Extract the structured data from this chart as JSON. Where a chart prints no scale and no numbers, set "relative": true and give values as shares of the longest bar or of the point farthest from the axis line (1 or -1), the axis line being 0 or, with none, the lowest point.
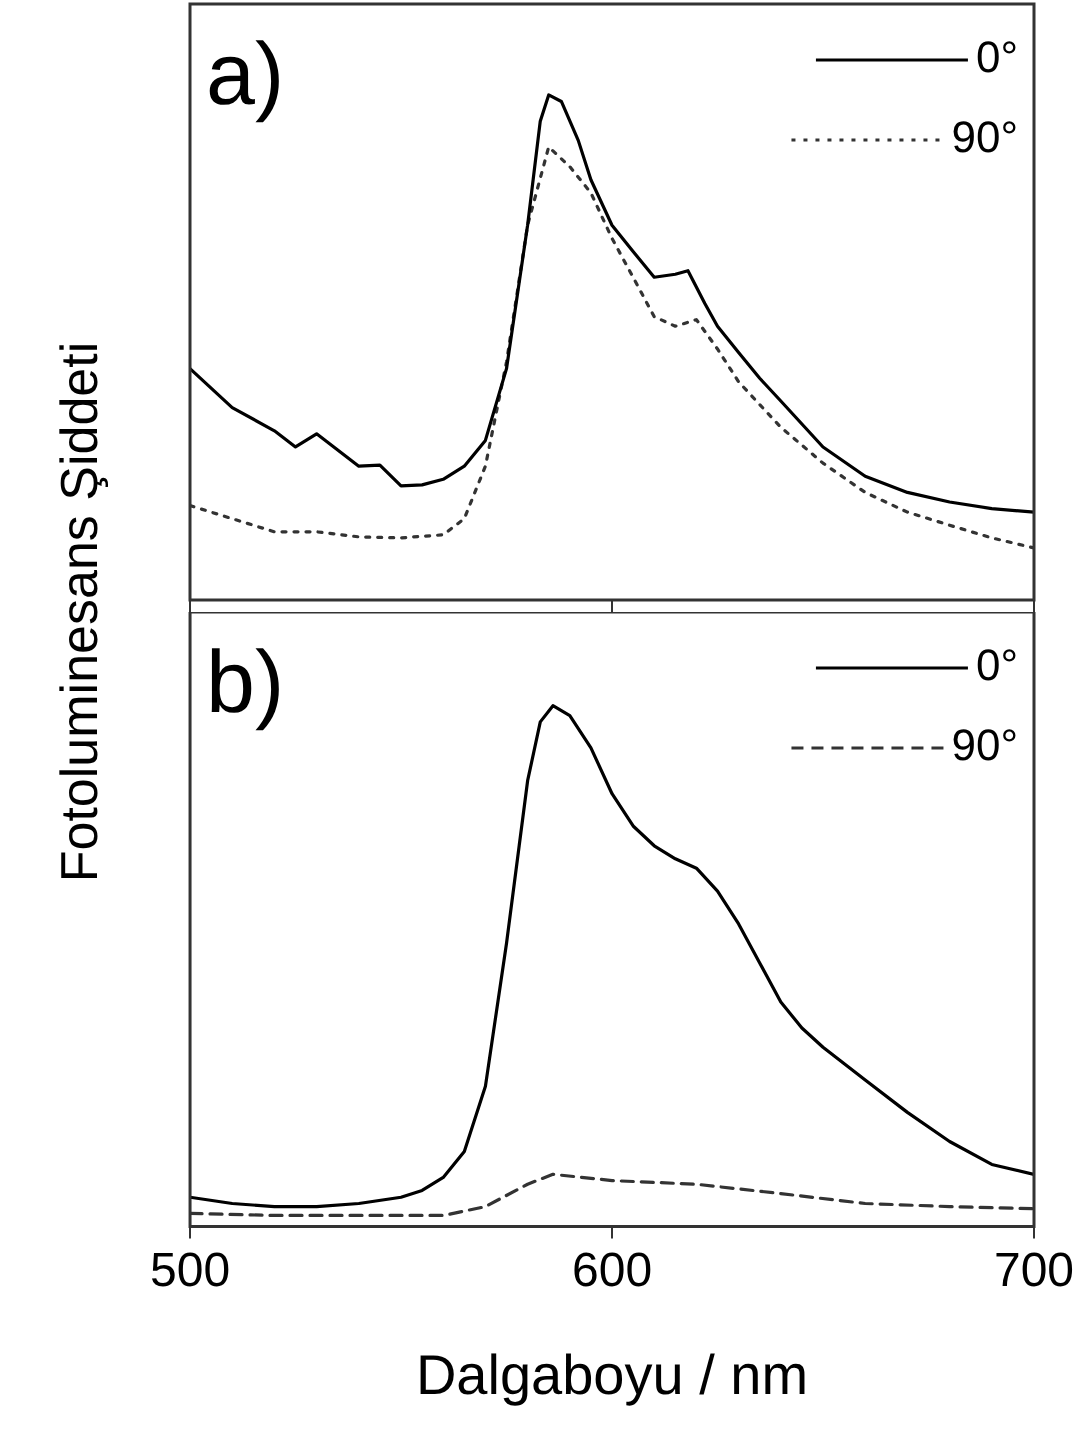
{
  "chart_data": [
    {
      "type": "line",
      "title": "a)",
      "ylabel": "Fotoluminesans Şiddeti",
      "relative": true,
      "xlim": [
        500,
        700
      ],
      "xticks": [
        500,
        600,
        700
      ],
      "tick_labels": false,
      "legend": "top right",
      "marker": "none",
      "grid": false,
      "series": [
        {
          "name": "0°",
          "color": "#000000",
          "line_style": "solid",
          "x": [
            500,
            510,
            520,
            525,
            530,
            540,
            545,
            550,
            555,
            560,
            565,
            570,
            575,
            580,
            583,
            585,
            588,
            592,
            595,
            600,
            605,
            610,
            615,
            618,
            622,
            625,
            630,
            635,
            640,
            650,
            660,
            670,
            680,
            690,
            700
          ],
          "values": [
            0.458,
            0.381,
            0.335,
            0.303,
            0.329,
            0.265,
            0.267,
            0.226,
            0.228,
            0.239,
            0.265,
            0.316,
            0.458,
            0.742,
            0.948,
            1.0,
            0.987,
            0.91,
            0.832,
            0.742,
            0.69,
            0.639,
            0.645,
            0.652,
            0.587,
            0.542,
            0.49,
            0.439,
            0.394,
            0.303,
            0.245,
            0.213,
            0.194,
            0.181,
            0.174
          ]
        },
        {
          "name": "90°",
          "color": "#333333",
          "line_style": "dotted",
          "x": [
            500,
            510,
            520,
            530,
            540,
            550,
            560,
            565,
            570,
            575,
            580,
            585,
            590,
            595,
            600,
            605,
            610,
            615,
            620,
            625,
            630,
            640,
            650,
            660,
            670,
            680,
            690,
            700
          ],
          "values": [
            0.187,
            0.161,
            0.135,
            0.135,
            0.125,
            0.123,
            0.129,
            0.161,
            0.265,
            0.471,
            0.742,
            0.897,
            0.858,
            0.806,
            0.716,
            0.639,
            0.561,
            0.542,
            0.555,
            0.497,
            0.432,
            0.342,
            0.271,
            0.213,
            0.174,
            0.148,
            0.123,
            0.103
          ]
        }
      ]
    },
    {
      "type": "line",
      "title": "b)",
      "xlabel": "Dalgaboyu / nm",
      "relative": true,
      "xlim": [
        500,
        700
      ],
      "xticks": [
        500,
        600,
        700
      ],
      "tick_labels": "x",
      "legend": "top right",
      "marker": "none",
      "grid": false,
      "series": [
        {
          "name": "0°",
          "color": "#000000",
          "line_style": "solid",
          "x": [
            500,
            510,
            520,
            530,
            540,
            550,
            555,
            560,
            565,
            570,
            575,
            578,
            580,
            583,
            586,
            590,
            595,
            600,
            605,
            610,
            615,
            620,
            625,
            630,
            635,
            640,
            645,
            650,
            660,
            670,
            680,
            690,
            700
          ],
          "values": [
            0.056,
            0.044,
            0.038,
            0.038,
            0.044,
            0.056,
            0.069,
            0.094,
            0.144,
            0.269,
            0.544,
            0.731,
            0.856,
            0.969,
            1.0,
            0.981,
            0.919,
            0.831,
            0.769,
            0.731,
            0.706,
            0.688,
            0.644,
            0.581,
            0.506,
            0.431,
            0.381,
            0.344,
            0.281,
            0.219,
            0.163,
            0.119,
            0.1
          ]
        },
        {
          "name": "90°",
          "color": "#333333",
          "line_style": "dashed",
          "x": [
            500,
            520,
            540,
            560,
            570,
            580,
            586,
            600,
            620,
            640,
            660,
            680,
            700
          ],
          "values": [
            0.025,
            0.021,
            0.021,
            0.021,
            0.038,
            0.081,
            0.1,
            0.088,
            0.081,
            0.063,
            0.044,
            0.038,
            0.034
          ]
        }
      ]
    }
  ]
}
